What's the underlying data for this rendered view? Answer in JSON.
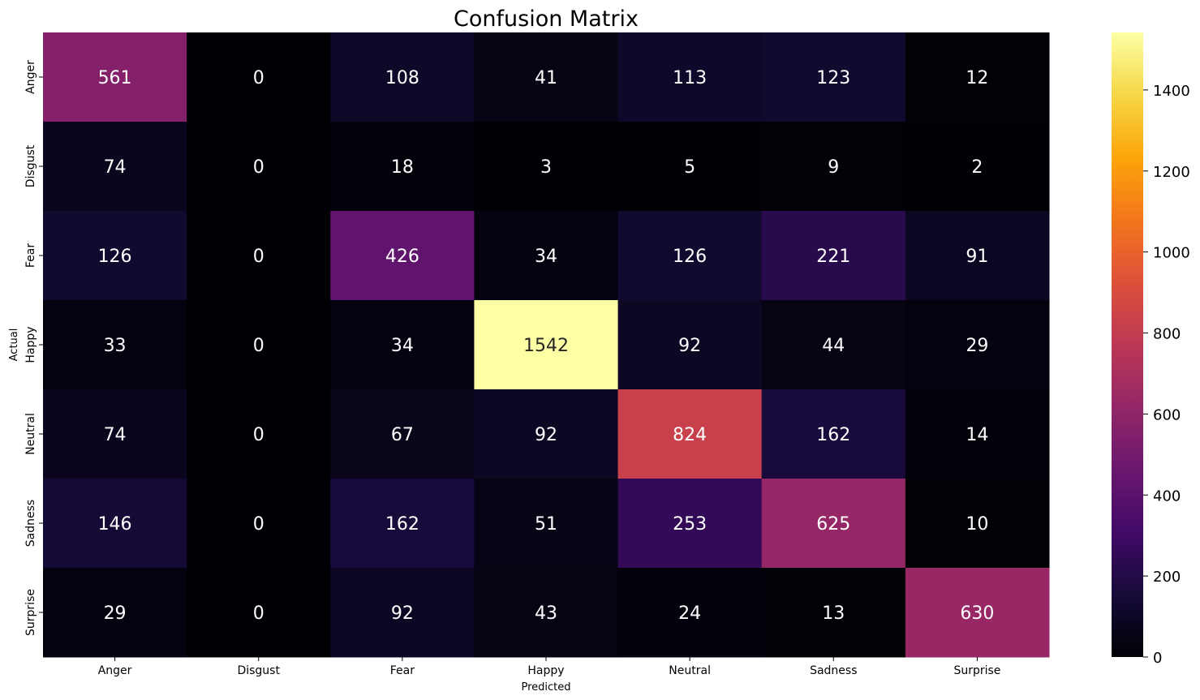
{
  "chart_data": {
    "type": "heatmap",
    "title": "Confusion Matrix",
    "xlabel": "Predicted",
    "ylabel": "Actual",
    "x_categories": [
      "Anger",
      "Disgust",
      "Fear",
      "Happy",
      "Neutral",
      "Sadness",
      "Surprise"
    ],
    "y_categories": [
      "Anger",
      "Disgust",
      "Fear",
      "Happy",
      "Neutral",
      "Sadness",
      "Surprise"
    ],
    "values": [
      [
        561,
        0,
        108,
        41,
        113,
        123,
        12
      ],
      [
        74,
        0,
        18,
        3,
        5,
        9,
        2
      ],
      [
        126,
        0,
        426,
        34,
        126,
        221,
        91
      ],
      [
        33,
        0,
        34,
        1542,
        92,
        44,
        29
      ],
      [
        74,
        0,
        67,
        92,
        824,
        162,
        14
      ],
      [
        146,
        0,
        162,
        51,
        253,
        625,
        10
      ],
      [
        29,
        0,
        92,
        43,
        24,
        13,
        630
      ]
    ],
    "colormap": "inferno",
    "vmin": 0,
    "vmax": 1542,
    "colorbar_ticks": [
      0,
      200,
      400,
      600,
      800,
      1000,
      1200,
      1400
    ],
    "annotations": true,
    "grid": false
  }
}
